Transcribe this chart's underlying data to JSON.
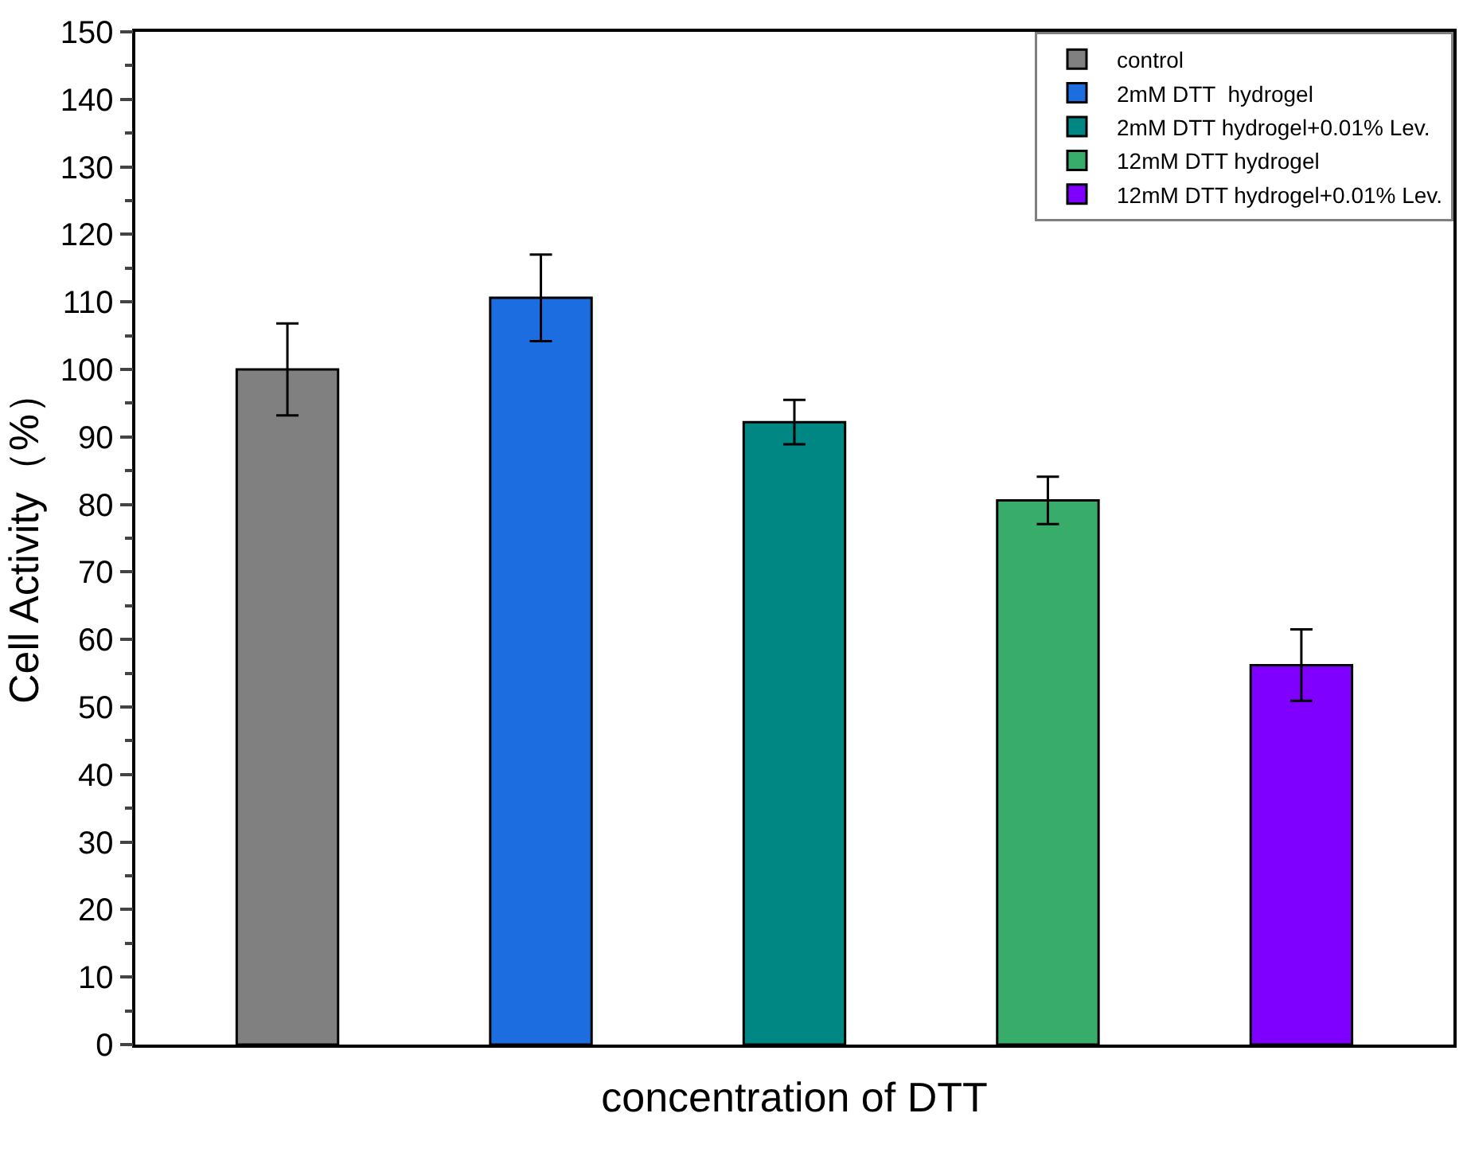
{
  "chart_data": {
    "type": "bar",
    "xlabel": "concentration of DTT",
    "ylabel": "Cell Activity（%）",
    "categories": [
      null,
      null,
      null,
      null,
      null
    ],
    "series": [
      {
        "name": "control",
        "color": "#808080",
        "values": [
          100,
          null,
          null,
          null,
          null
        ],
        "errors": [
          6.8,
          null,
          null,
          null,
          null
        ]
      },
      {
        "name": "2mM DTT  hydrogel",
        "color": "#1c6ee0",
        "values": [
          null,
          110.6,
          null,
          null,
          null
        ],
        "errors": [
          null,
          6.4,
          null,
          null,
          null
        ]
      },
      {
        "name": "2mM DTT hydrogel+0.01% Lev.",
        "color": "#008784",
        "values": [
          null,
          null,
          92.2,
          null,
          null
        ],
        "errors": [
          null,
          null,
          3.3,
          null,
          null
        ]
      },
      {
        "name": "12mM DTT hydrogel",
        "color": "#38ad6b",
        "values": [
          null,
          null,
          null,
          80.6,
          null
        ],
        "errors": [
          null,
          null,
          null,
          3.5,
          null
        ]
      },
      {
        "name": "12mM DTT hydrogel+0.01% Lev.",
        "color": "#7f00ff",
        "values": [
          null,
          null,
          null,
          null,
          56.2
        ],
        "errors": [
          null,
          null,
          null,
          null,
          5.3
        ]
      }
    ],
    "ylim": [
      0,
      150
    ],
    "yticks": [
      0,
      10,
      20,
      30,
      40,
      50,
      60,
      70,
      80,
      90,
      100,
      110,
      120,
      130,
      140,
      150
    ],
    "legend": "top right"
  }
}
